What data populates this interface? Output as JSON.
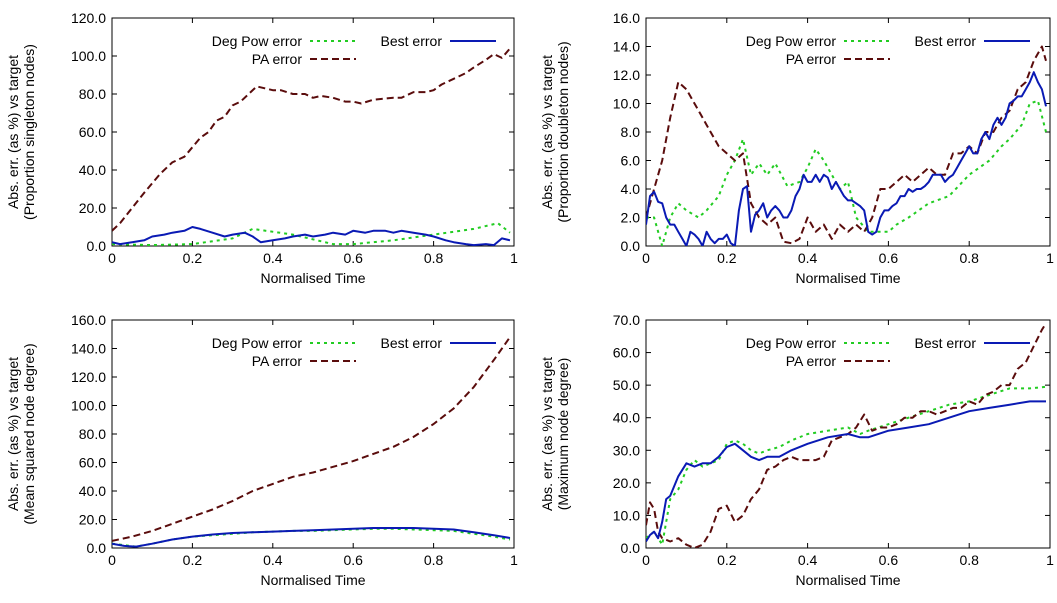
{
  "x_ticks": [
    "0",
    "0.2",
    "0.4",
    "0.6",
    "0.8",
    "1"
  ],
  "legend_labels": {
    "degpow": "Deg Pow error",
    "pa": "PA error",
    "best": "Best error"
  },
  "colors": {
    "degpow": "#22cc22",
    "pa": "#5a0c0c",
    "best": "#0a1ab4"
  },
  "chart_data": [
    {
      "type": "line",
      "xlabel": "Normalised Time",
      "ylabel": [
        "Abs. err. (as %) vs target",
        "(Proportion singleton nodes)"
      ],
      "xlim": [
        0,
        1
      ],
      "ylim": [
        0,
        120
      ],
      "y_ticks": [
        "0.0",
        "20.0",
        "40.0",
        "60.0",
        "80.0",
        "100.0",
        "120.0"
      ],
      "series": [
        {
          "key": "degpow",
          "name": "Deg Pow error",
          "x": [
            0,
            0.1,
            0.2,
            0.3,
            0.35,
            0.45,
            0.55,
            0.6,
            0.7,
            0.8,
            0.9,
            0.96,
            0.99
          ],
          "y": [
            1,
            0.5,
            1,
            4,
            9,
            6,
            1,
            1,
            3,
            6,
            9,
            12,
            7
          ]
        },
        {
          "key": "pa",
          "name": "PA error",
          "x": [
            0,
            0.02,
            0.05,
            0.08,
            0.1,
            0.12,
            0.15,
            0.18,
            0.2,
            0.22,
            0.24,
            0.26,
            0.28,
            0.3,
            0.32,
            0.34,
            0.36,
            0.38,
            0.4,
            0.42,
            0.45,
            0.48,
            0.5,
            0.52,
            0.55,
            0.58,
            0.6,
            0.62,
            0.65,
            0.7,
            0.72,
            0.75,
            0.78,
            0.8,
            0.82,
            0.85,
            0.88,
            0.9,
            0.93,
            0.95,
            0.97,
            0.99
          ],
          "y": [
            8,
            12,
            20,
            28,
            33,
            38,
            44,
            47,
            52,
            57,
            60,
            66,
            68,
            74,
            76,
            80,
            84,
            83,
            82,
            82,
            80,
            80,
            78,
            79,
            78,
            76,
            76,
            75,
            77,
            78,
            78,
            81,
            81,
            82,
            85,
            88,
            91,
            94,
            98,
            101,
            99,
            104
          ]
        },
        {
          "key": "best",
          "name": "Best error",
          "x": [
            0,
            0.02,
            0.05,
            0.08,
            0.1,
            0.13,
            0.15,
            0.18,
            0.2,
            0.22,
            0.25,
            0.28,
            0.3,
            0.33,
            0.35,
            0.37,
            0.4,
            0.43,
            0.45,
            0.48,
            0.5,
            0.53,
            0.55,
            0.58,
            0.6,
            0.63,
            0.65,
            0.68,
            0.7,
            0.72,
            0.75,
            0.78,
            0.8,
            0.83,
            0.85,
            0.88,
            0.9,
            0.93,
            0.95,
            0.97,
            0.99
          ],
          "y": [
            2,
            1,
            2,
            3,
            5,
            6,
            7,
            8,
            10,
            9,
            7,
            5,
            6,
            7,
            5,
            2,
            3,
            4,
            5,
            6,
            5,
            6,
            7,
            6,
            8,
            7,
            8,
            8,
            7,
            8,
            7,
            6,
            5,
            3,
            2,
            1,
            0.5,
            1,
            0.5,
            4,
            3
          ]
        }
      ]
    },
    {
      "type": "line",
      "xlabel": "Normalised Time",
      "ylabel": [
        "Abs. err. (as %) vs target",
        "(Proportion doubleton nodes)"
      ],
      "xlim": [
        0,
        1
      ],
      "ylim": [
        0,
        16
      ],
      "y_ticks": [
        "0.0",
        "2.0",
        "4.0",
        "6.0",
        "8.0",
        "10.0",
        "12.0",
        "14.0",
        "16.0"
      ],
      "series": [
        {
          "key": "degpow",
          "name": "Deg Pow error",
          "x": [
            0,
            0.02,
            0.04,
            0.06,
            0.08,
            0.1,
            0.13,
            0.15,
            0.18,
            0.2,
            0.22,
            0.24,
            0.26,
            0.28,
            0.3,
            0.32,
            0.35,
            0.38,
            0.4,
            0.42,
            0.44,
            0.46,
            0.48,
            0.5,
            0.52,
            0.55,
            0.58,
            0.6,
            0.62,
            0.65,
            0.7,
            0.75,
            0.8,
            0.85,
            0.88,
            0.9,
            0.93,
            0.95,
            0.97,
            0.99
          ],
          "y": [
            2,
            2,
            0,
            2,
            3,
            2.5,
            2,
            2.5,
            3.5,
            5,
            6,
            7.5,
            5,
            5.8,
            5,
            5.8,
            4.2,
            4.5,
            5.5,
            6.8,
            6,
            5,
            4,
            4.5,
            2,
            1,
            1,
            1,
            1.5,
            2,
            3,
            3.5,
            5,
            6,
            7,
            7.5,
            8.5,
            10,
            10.2,
            8
          ]
        },
        {
          "key": "pa",
          "name": "PA error",
          "x": [
            0,
            0.02,
            0.04,
            0.06,
            0.08,
            0.1,
            0.12,
            0.14,
            0.16,
            0.18,
            0.2,
            0.22,
            0.24,
            0.26,
            0.28,
            0.3,
            0.32,
            0.34,
            0.36,
            0.38,
            0.4,
            0.42,
            0.44,
            0.46,
            0.48,
            0.5,
            0.52,
            0.54,
            0.56,
            0.58,
            0.6,
            0.62,
            0.64,
            0.66,
            0.68,
            0.7,
            0.72,
            0.74,
            0.76,
            0.78,
            0.8,
            0.82,
            0.84,
            0.86,
            0.88,
            0.9,
            0.92,
            0.94,
            0.96,
            0.98,
            0.99
          ],
          "y": [
            2,
            4,
            6,
            9,
            11.5,
            11,
            10,
            9,
            8,
            7,
            6.5,
            6,
            6.5,
            3,
            2,
            1.5,
            2,
            0.3,
            0.2,
            0.5,
            2,
            1,
            1.5,
            0.5,
            1.5,
            1,
            1.5,
            1,
            2,
            4,
            4,
            4.5,
            5,
            4.5,
            5,
            5.5,
            5,
            5,
            6.5,
            6.5,
            7,
            6.5,
            8,
            8,
            9,
            9.5,
            11,
            11.5,
            13,
            14,
            13
          ]
        },
        {
          "key": "best",
          "name": "Best error",
          "x": [
            0,
            0.01,
            0.02,
            0.03,
            0.04,
            0.05,
            0.06,
            0.07,
            0.08,
            0.09,
            0.1,
            0.11,
            0.12,
            0.13,
            0.14,
            0.15,
            0.16,
            0.17,
            0.18,
            0.19,
            0.2,
            0.21,
            0.22,
            0.23,
            0.24,
            0.25,
            0.26,
            0.27,
            0.28,
            0.29,
            0.3,
            0.31,
            0.32,
            0.33,
            0.34,
            0.35,
            0.36,
            0.37,
            0.38,
            0.39,
            0.4,
            0.41,
            0.42,
            0.43,
            0.44,
            0.45,
            0.46,
            0.47,
            0.48,
            0.49,
            0.5,
            0.51,
            0.52,
            0.53,
            0.54,
            0.55,
            0.56,
            0.57,
            0.58,
            0.59,
            0.6,
            0.61,
            0.62,
            0.63,
            0.64,
            0.65,
            0.66,
            0.67,
            0.68,
            0.69,
            0.7,
            0.71,
            0.72,
            0.73,
            0.74,
            0.75,
            0.76,
            0.77,
            0.78,
            0.79,
            0.8,
            0.81,
            0.82,
            0.83,
            0.84,
            0.85,
            0.86,
            0.87,
            0.88,
            0.89,
            0.9,
            0.91,
            0.92,
            0.93,
            0.94,
            0.95,
            0.96,
            0.97,
            0.98,
            0.99
          ],
          "y": [
            1.5,
            3.5,
            3.8,
            3.1,
            3,
            2,
            1.5,
            1.5,
            1,
            0.5,
            0,
            1,
            0.8,
            0.5,
            0,
            1,
            0.5,
            0.2,
            0.5,
            0.5,
            0.8,
            0.2,
            0,
            2.5,
            4,
            4.2,
            1,
            2.2,
            2.5,
            3,
            2,
            2.5,
            2.8,
            2.5,
            2,
            2,
            2.5,
            3.5,
            4,
            5,
            4.5,
            4.5,
            5,
            4.5,
            5,
            4.8,
            4,
            4.5,
            4,
            3.5,
            3.2,
            3.2,
            3,
            2.8,
            2.5,
            1,
            0.8,
            1,
            2,
            2.5,
            2.5,
            2.8,
            3,
            3.5,
            3.5,
            4,
            3.8,
            4,
            4,
            4.2,
            4.5,
            5,
            5,
            5,
            4.5,
            4.8,
            5,
            5.5,
            6,
            6.5,
            7,
            6.5,
            6.5,
            7.5,
            8,
            7.5,
            8.5,
            9,
            8.5,
            9,
            10,
            10.2,
            10.5,
            10.5,
            11,
            11.5,
            12.2,
            11.5,
            11,
            9.8
          ]
        }
      ]
    },
    {
      "type": "line",
      "xlabel": "Normalised Time",
      "ylabel": [
        "Abs. err. (as %) vs target",
        "(Mean squared node degree)"
      ],
      "xlim": [
        0,
        1
      ],
      "ylim": [
        0,
        160
      ],
      "y_ticks": [
        "0.0",
        "20.0",
        "40.0",
        "60.0",
        "80.0",
        "100.0",
        "120.0",
        "140.0",
        "160.0"
      ],
      "series": [
        {
          "key": "degpow",
          "name": "Deg Pow error",
          "x": [
            0,
            0.03,
            0.06,
            0.1,
            0.15,
            0.2,
            0.25,
            0.3,
            0.35,
            0.4,
            0.45,
            0.5,
            0.55,
            0.6,
            0.65,
            0.7,
            0.75,
            0.8,
            0.85,
            0.9,
            0.95,
            0.99
          ],
          "y": [
            3,
            2,
            1,
            3,
            6,
            8,
            9,
            10,
            11,
            11.5,
            12,
            12,
            12.5,
            13,
            13.5,
            13.5,
            13,
            12.5,
            12,
            10,
            8,
            6
          ]
        },
        {
          "key": "pa",
          "name": "PA error",
          "x": [
            0,
            0.05,
            0.1,
            0.15,
            0.2,
            0.25,
            0.3,
            0.35,
            0.4,
            0.45,
            0.5,
            0.55,
            0.6,
            0.65,
            0.7,
            0.75,
            0.8,
            0.85,
            0.9,
            0.95,
            0.99
          ],
          "y": [
            5,
            8,
            12,
            17,
            22,
            27,
            33,
            40,
            45,
            50,
            53,
            57,
            61,
            66,
            71,
            78,
            87,
            98,
            113,
            132,
            148
          ]
        },
        {
          "key": "best",
          "name": "Best error",
          "x": [
            0,
            0.03,
            0.06,
            0.1,
            0.15,
            0.2,
            0.25,
            0.3,
            0.35,
            0.4,
            0.45,
            0.5,
            0.55,
            0.6,
            0.65,
            0.7,
            0.75,
            0.8,
            0.85,
            0.9,
            0.95,
            0.99
          ],
          "y": [
            3,
            1.5,
            1,
            3,
            6,
            8,
            9.5,
            10.5,
            11,
            11.5,
            12,
            12.5,
            13,
            13.5,
            14,
            14,
            14,
            13.5,
            13,
            11,
            9,
            7
          ]
        }
      ]
    },
    {
      "type": "line",
      "xlabel": "Normalised Time",
      "ylabel": [
        "Abs. err. (as %) vs target",
        "(Maximum node degree)"
      ],
      "xlim": [
        0,
        1
      ],
      "ylim": [
        0,
        70
      ],
      "y_ticks": [
        "0.0",
        "10.0",
        "20.0",
        "30.0",
        "40.0",
        "50.0",
        "60.0",
        "70.0"
      ],
      "series": [
        {
          "key": "degpow",
          "name": "Deg Pow error",
          "x": [
            0,
            0.02,
            0.04,
            0.06,
            0.08,
            0.1,
            0.12,
            0.14,
            0.16,
            0.18,
            0.2,
            0.22,
            0.24,
            0.26,
            0.28,
            0.3,
            0.33,
            0.36,
            0.4,
            0.45,
            0.5,
            0.53,
            0.55,
            0.6,
            0.65,
            0.7,
            0.75,
            0.8,
            0.85,
            0.9,
            0.95,
            0.99
          ],
          "y": [
            3,
            5,
            1,
            15,
            18,
            24,
            27,
            25,
            26,
            27,
            32,
            33,
            32,
            30,
            29,
            30,
            31,
            33,
            35,
            36,
            37,
            35,
            36,
            38,
            40,
            42,
            44,
            45,
            47,
            49,
            49,
            49.5
          ]
        },
        {
          "key": "pa",
          "name": "PA error",
          "x": [
            0,
            0.01,
            0.02,
            0.03,
            0.04,
            0.06,
            0.08,
            0.1,
            0.12,
            0.14,
            0.16,
            0.18,
            0.2,
            0.22,
            0.24,
            0.26,
            0.28,
            0.3,
            0.32,
            0.34,
            0.36,
            0.38,
            0.4,
            0.42,
            0.44,
            0.46,
            0.48,
            0.5,
            0.52,
            0.54,
            0.56,
            0.58,
            0.6,
            0.62,
            0.64,
            0.66,
            0.68,
            0.7,
            0.72,
            0.74,
            0.76,
            0.78,
            0.8,
            0.82,
            0.84,
            0.86,
            0.88,
            0.9,
            0.92,
            0.94,
            0.96,
            0.98,
            0.99
          ],
          "y": [
            7,
            14,
            12,
            5,
            3,
            2,
            3,
            1,
            0,
            1,
            5,
            12,
            13,
            8,
            10,
            15,
            18,
            24,
            25,
            27,
            28,
            27,
            27,
            27,
            28,
            33,
            34,
            35,
            37,
            41,
            36,
            37,
            37,
            38,
            40,
            40,
            42,
            42,
            41,
            42,
            43,
            43,
            45,
            44,
            47,
            48,
            50,
            50,
            55,
            57,
            62,
            67,
            69
          ]
        },
        {
          "key": "best",
          "name": "Best error",
          "x": [
            0,
            0.01,
            0.02,
            0.03,
            0.04,
            0.05,
            0.06,
            0.08,
            0.1,
            0.12,
            0.14,
            0.16,
            0.18,
            0.2,
            0.22,
            0.24,
            0.26,
            0.28,
            0.3,
            0.33,
            0.36,
            0.4,
            0.45,
            0.5,
            0.53,
            0.55,
            0.6,
            0.65,
            0.7,
            0.75,
            0.8,
            0.85,
            0.9,
            0.95,
            0.99
          ],
          "y": [
            2,
            4,
            5,
            3,
            8,
            15,
            16,
            22,
            26,
            25,
            26,
            26,
            28,
            31,
            32,
            30,
            28,
            27,
            28,
            28,
            30,
            32,
            34,
            35,
            34,
            34,
            36,
            37,
            38,
            40,
            42,
            43,
            44,
            45,
            45
          ]
        }
      ]
    }
  ]
}
